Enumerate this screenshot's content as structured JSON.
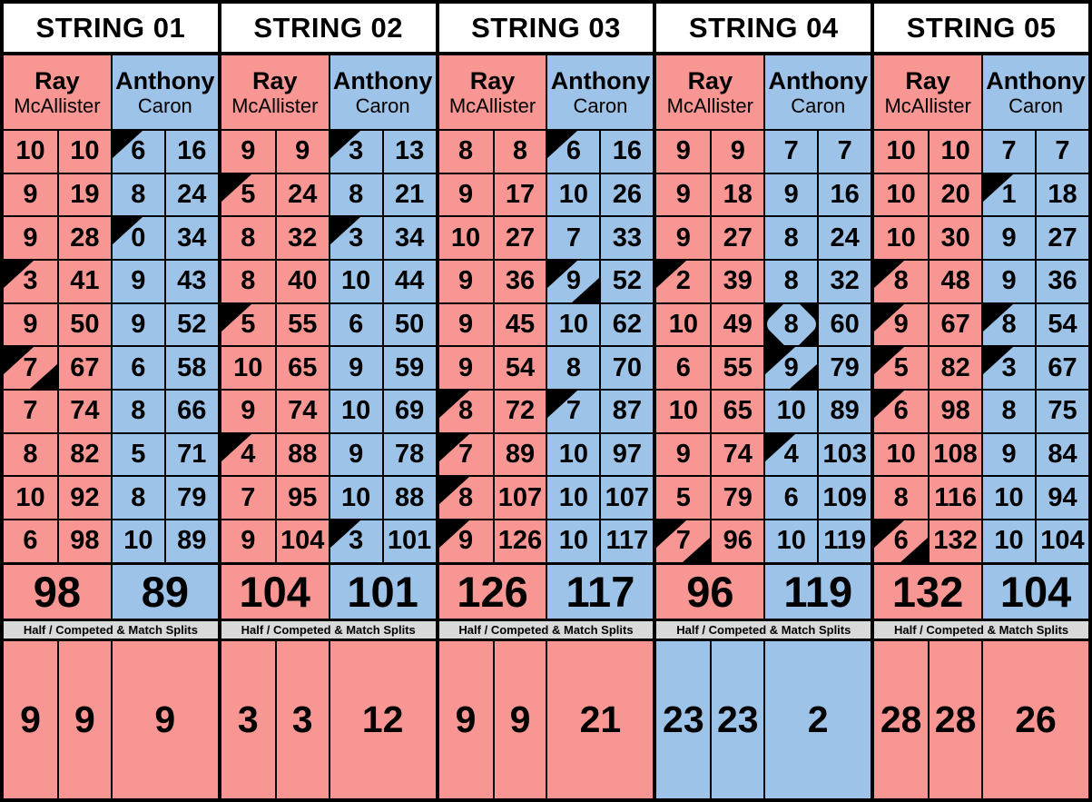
{
  "colors": {
    "pink": "#F89693",
    "blue": "#9DC3E8",
    "bar_bg": "#D9D9D9",
    "header_bg": "#FFFFFF",
    "line": "#000000"
  },
  "players": [
    {
      "first": "Ray",
      "last": "McAllister",
      "color": "pink"
    },
    {
      "first": "Anthony",
      "last": "Caron",
      "color": "blue"
    }
  ],
  "splits_label": "Half / Competed & Match Splits",
  "strings": [
    {
      "label": "STRING 01",
      "frames": [
        [
          {
            "s": "10",
            "t": "10",
            "m": ""
          },
          {
            "s": "6",
            "t": "16",
            "m": "tl"
          }
        ],
        [
          {
            "s": "9",
            "t": "19",
            "m": ""
          },
          {
            "s": "8",
            "t": "24",
            "m": ""
          }
        ],
        [
          {
            "s": "9",
            "t": "28",
            "m": ""
          },
          {
            "s": "0",
            "t": "34",
            "m": "tl"
          }
        ],
        [
          {
            "s": "3",
            "t": "41",
            "m": "tl"
          },
          {
            "s": "9",
            "t": "43",
            "m": ""
          }
        ],
        [
          {
            "s": "9",
            "t": "50",
            "m": ""
          },
          {
            "s": "9",
            "t": "52",
            "m": ""
          }
        ],
        [
          {
            "s": "7",
            "t": "67",
            "m": "tlbr"
          },
          {
            "s": "6",
            "t": "58",
            "m": ""
          }
        ],
        [
          {
            "s": "7",
            "t": "74",
            "m": ""
          },
          {
            "s": "8",
            "t": "66",
            "m": ""
          }
        ],
        [
          {
            "s": "8",
            "t": "82",
            "m": ""
          },
          {
            "s": "5",
            "t": "71",
            "m": ""
          }
        ],
        [
          {
            "s": "10",
            "t": "92",
            "m": ""
          },
          {
            "s": "8",
            "t": "79",
            "m": ""
          }
        ],
        [
          {
            "s": "6",
            "t": "98",
            "m": ""
          },
          {
            "s": "10",
            "t": "89",
            "m": ""
          }
        ]
      ],
      "totals": [
        "98",
        "89"
      ],
      "bottom": [
        {
          "v": "9",
          "color": "pink",
          "span": 1
        },
        {
          "v": "9",
          "color": "pink",
          "span": 1
        },
        {
          "v": "9",
          "color": "pink",
          "span": 2
        }
      ]
    },
    {
      "label": "STRING 02",
      "frames": [
        [
          {
            "s": "9",
            "t": "9",
            "m": ""
          },
          {
            "s": "3",
            "t": "13",
            "m": "tl"
          }
        ],
        [
          {
            "s": "5",
            "t": "24",
            "m": "tl"
          },
          {
            "s": "8",
            "t": "21",
            "m": ""
          }
        ],
        [
          {
            "s": "8",
            "t": "32",
            "m": ""
          },
          {
            "s": "3",
            "t": "34",
            "m": "tl"
          }
        ],
        [
          {
            "s": "8",
            "t": "40",
            "m": ""
          },
          {
            "s": "10",
            "t": "44",
            "m": ""
          }
        ],
        [
          {
            "s": "5",
            "t": "55",
            "m": "tl"
          },
          {
            "s": "6",
            "t": "50",
            "m": ""
          }
        ],
        [
          {
            "s": "10",
            "t": "65",
            "m": ""
          },
          {
            "s": "9",
            "t": "59",
            "m": ""
          }
        ],
        [
          {
            "s": "9",
            "t": "74",
            "m": ""
          },
          {
            "s": "10",
            "t": "69",
            "m": ""
          }
        ],
        [
          {
            "s": "4",
            "t": "88",
            "m": "tl"
          },
          {
            "s": "9",
            "t": "78",
            "m": ""
          }
        ],
        [
          {
            "s": "7",
            "t": "95",
            "m": ""
          },
          {
            "s": "10",
            "t": "88",
            "m": ""
          }
        ],
        [
          {
            "s": "9",
            "t": "104",
            "m": ""
          },
          {
            "s": "3",
            "t": "101",
            "m": "tl"
          }
        ]
      ],
      "totals": [
        "104",
        "101"
      ],
      "bottom": [
        {
          "v": "3",
          "color": "pink",
          "span": 1
        },
        {
          "v": "3",
          "color": "pink",
          "span": 1
        },
        {
          "v": "12",
          "color": "pink",
          "span": 2
        }
      ]
    },
    {
      "label": "STRING 03",
      "frames": [
        [
          {
            "s": "8",
            "t": "8",
            "m": ""
          },
          {
            "s": "6",
            "t": "16",
            "m": "tl"
          }
        ],
        [
          {
            "s": "9",
            "t": "17",
            "m": ""
          },
          {
            "s": "10",
            "t": "26",
            "m": ""
          }
        ],
        [
          {
            "s": "10",
            "t": "27",
            "m": ""
          },
          {
            "s": "7",
            "t": "33",
            "m": ""
          }
        ],
        [
          {
            "s": "9",
            "t": "36",
            "m": ""
          },
          {
            "s": "9",
            "t": "52",
            "m": "tlbr"
          }
        ],
        [
          {
            "s": "9",
            "t": "45",
            "m": ""
          },
          {
            "s": "10",
            "t": "62",
            "m": ""
          }
        ],
        [
          {
            "s": "9",
            "t": "54",
            "m": ""
          },
          {
            "s": "8",
            "t": "70",
            "m": ""
          }
        ],
        [
          {
            "s": "8",
            "t": "72",
            "m": "tl"
          },
          {
            "s": "7",
            "t": "87",
            "m": "tl"
          }
        ],
        [
          {
            "s": "7",
            "t": "89",
            "m": "tl"
          },
          {
            "s": "10",
            "t": "97",
            "m": ""
          }
        ],
        [
          {
            "s": "8",
            "t": "107",
            "m": "tl"
          },
          {
            "s": "10",
            "t": "107",
            "m": ""
          }
        ],
        [
          {
            "s": "9",
            "t": "126",
            "m": "tl"
          },
          {
            "s": "10",
            "t": "117",
            "m": ""
          }
        ]
      ],
      "totals": [
        "126",
        "117"
      ],
      "bottom": [
        {
          "v": "9",
          "color": "pink",
          "span": 1
        },
        {
          "v": "9",
          "color": "pink",
          "span": 1
        },
        {
          "v": "21",
          "color": "pink",
          "span": 2
        }
      ]
    },
    {
      "label": "STRING 04",
      "frames": [
        [
          {
            "s": "9",
            "t": "9",
            "m": ""
          },
          {
            "s": "7",
            "t": "7",
            "m": ""
          }
        ],
        [
          {
            "s": "9",
            "t": "18",
            "m": ""
          },
          {
            "s": "9",
            "t": "16",
            "m": ""
          }
        ],
        [
          {
            "s": "9",
            "t": "27",
            "m": ""
          },
          {
            "s": "8",
            "t": "24",
            "m": ""
          }
        ],
        [
          {
            "s": "2",
            "t": "39",
            "m": "tl"
          },
          {
            "s": "8",
            "t": "32",
            "m": ""
          }
        ],
        [
          {
            "s": "10",
            "t": "49",
            "m": ""
          },
          {
            "s": "8",
            "t": "60",
            "m": "d"
          }
        ],
        [
          {
            "s": "6",
            "t": "55",
            "m": ""
          },
          {
            "s": "9",
            "t": "79",
            "m": "tlbr"
          }
        ],
        [
          {
            "s": "10",
            "t": "65",
            "m": ""
          },
          {
            "s": "10",
            "t": "89",
            "m": ""
          }
        ],
        [
          {
            "s": "9",
            "t": "74",
            "m": ""
          },
          {
            "s": "4",
            "t": "103",
            "m": "tl"
          }
        ],
        [
          {
            "s": "5",
            "t": "79",
            "m": ""
          },
          {
            "s": "6",
            "t": "109",
            "m": ""
          }
        ],
        [
          {
            "s": "7",
            "t": "96",
            "m": "tlbr"
          },
          {
            "s": "10",
            "t": "119",
            "m": ""
          }
        ]
      ],
      "totals": [
        "96",
        "119"
      ],
      "bottom": [
        {
          "v": "23",
          "color": "blue",
          "span": 1
        },
        {
          "v": "23",
          "color": "blue",
          "span": 1
        },
        {
          "v": "2",
          "color": "blue",
          "span": 2
        }
      ]
    },
    {
      "label": "STRING 05",
      "frames": [
        [
          {
            "s": "10",
            "t": "10",
            "m": ""
          },
          {
            "s": "7",
            "t": "7",
            "m": ""
          }
        ],
        [
          {
            "s": "10",
            "t": "20",
            "m": ""
          },
          {
            "s": "1",
            "t": "18",
            "m": "tl"
          }
        ],
        [
          {
            "s": "10",
            "t": "30",
            "m": ""
          },
          {
            "s": "9",
            "t": "27",
            "m": ""
          }
        ],
        [
          {
            "s": "8",
            "t": "48",
            "m": "tl"
          },
          {
            "s": "9",
            "t": "36",
            "m": ""
          }
        ],
        [
          {
            "s": "9",
            "t": "67",
            "m": "tl"
          },
          {
            "s": "8",
            "t": "54",
            "m": "tl"
          }
        ],
        [
          {
            "s": "5",
            "t": "82",
            "m": "tl"
          },
          {
            "s": "3",
            "t": "67",
            "m": "tl"
          }
        ],
        [
          {
            "s": "6",
            "t": "98",
            "m": "tl"
          },
          {
            "s": "8",
            "t": "75",
            "m": ""
          }
        ],
        [
          {
            "s": "10",
            "t": "108",
            "m": ""
          },
          {
            "s": "9",
            "t": "84",
            "m": ""
          }
        ],
        [
          {
            "s": "8",
            "t": "116",
            "m": ""
          },
          {
            "s": "10",
            "t": "94",
            "m": ""
          }
        ],
        [
          {
            "s": "6",
            "t": "132",
            "m": "tlbr"
          },
          {
            "s": "10",
            "t": "104",
            "m": ""
          }
        ]
      ],
      "totals": [
        "132",
        "104"
      ],
      "bottom": [
        {
          "v": "28",
          "color": "pink",
          "span": 1
        },
        {
          "v": "28",
          "color": "pink",
          "span": 1
        },
        {
          "v": "26",
          "color": "pink",
          "span": 2
        }
      ]
    }
  ]
}
